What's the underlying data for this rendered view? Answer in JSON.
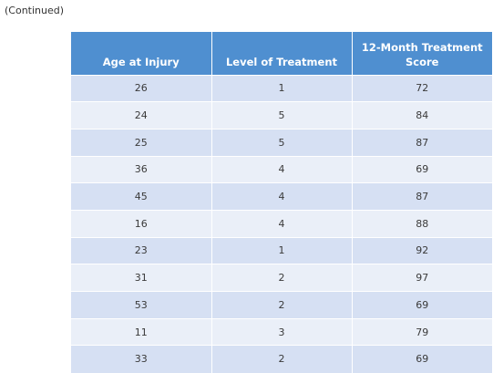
{
  "continued_label": "(Continued)",
  "table": {
    "headers": [
      "Age at Injury",
      "Level of Treatment",
      "12-Month Treatment Score"
    ],
    "rows": [
      [
        "26",
        "1",
        "72"
      ],
      [
        "24",
        "5",
        "84"
      ],
      [
        "25",
        "5",
        "87"
      ],
      [
        "36",
        "4",
        "69"
      ],
      [
        "45",
        "4",
        "87"
      ],
      [
        "16",
        "4",
        "88"
      ],
      [
        "23",
        "1",
        "92"
      ],
      [
        "31",
        "2",
        "97"
      ],
      [
        "53",
        "2",
        "69"
      ],
      [
        "11",
        "3",
        "79"
      ],
      [
        "33",
        "2",
        "69"
      ]
    ]
  },
  "colors": {
    "header_bg": "#4f8fd0",
    "row_odd_bg": "#d6e0f3",
    "row_even_bg": "#eaeff8"
  }
}
